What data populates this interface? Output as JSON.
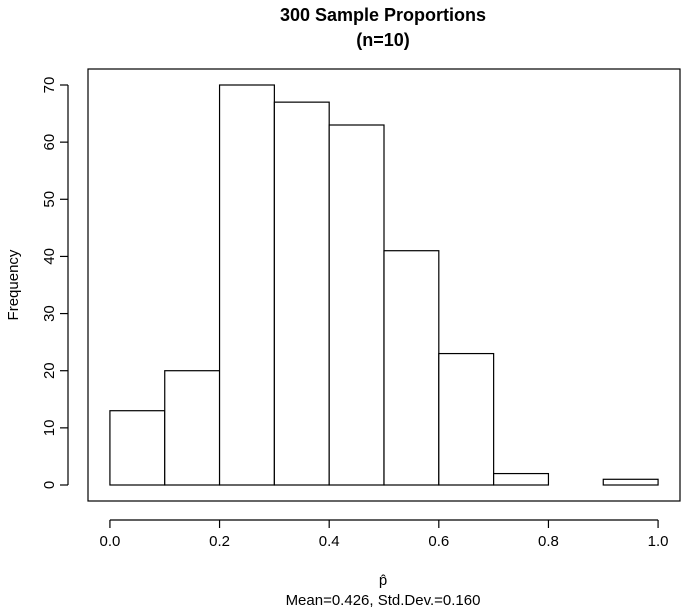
{
  "chart_data": {
    "type": "bar",
    "title": [
      "300 Sample Proportions",
      "(n=10)"
    ],
    "xlabel": "p̂",
    "subtitle": "Mean=0.426, Std.Dev.=0.160",
    "ylabel": "Frequency",
    "bins": [
      {
        "start": 0.0,
        "end": 0.1,
        "value": 13
      },
      {
        "start": 0.1,
        "end": 0.2,
        "value": 20
      },
      {
        "start": 0.2,
        "end": 0.3,
        "value": 70
      },
      {
        "start": 0.3,
        "end": 0.4,
        "value": 67
      },
      {
        "start": 0.4,
        "end": 0.5,
        "value": 63
      },
      {
        "start": 0.5,
        "end": 0.6,
        "value": 41
      },
      {
        "start": 0.6,
        "end": 0.7,
        "value": 23
      },
      {
        "start": 0.7,
        "end": 0.8,
        "value": 2
      },
      {
        "start": 0.8,
        "end": 0.9,
        "value": 0
      },
      {
        "start": 0.9,
        "end": 1.0,
        "value": 1
      }
    ],
    "xticks": [
      0.0,
      0.2,
      0.4,
      0.6,
      0.8,
      1.0
    ],
    "xtick_labels": [
      "0.0",
      "0.2",
      "0.4",
      "0.6",
      "0.8",
      "1.0"
    ],
    "yticks": [
      0,
      10,
      20,
      30,
      40,
      50,
      60,
      70
    ],
    "ytick_labels": [
      "0",
      "10",
      "20",
      "30",
      "40",
      "50",
      "60",
      "70"
    ],
    "xlim": [
      -0.04,
      1.04
    ],
    "ylim": [
      -2.8,
      72.8
    ],
    "grid": false,
    "legend": "none"
  }
}
